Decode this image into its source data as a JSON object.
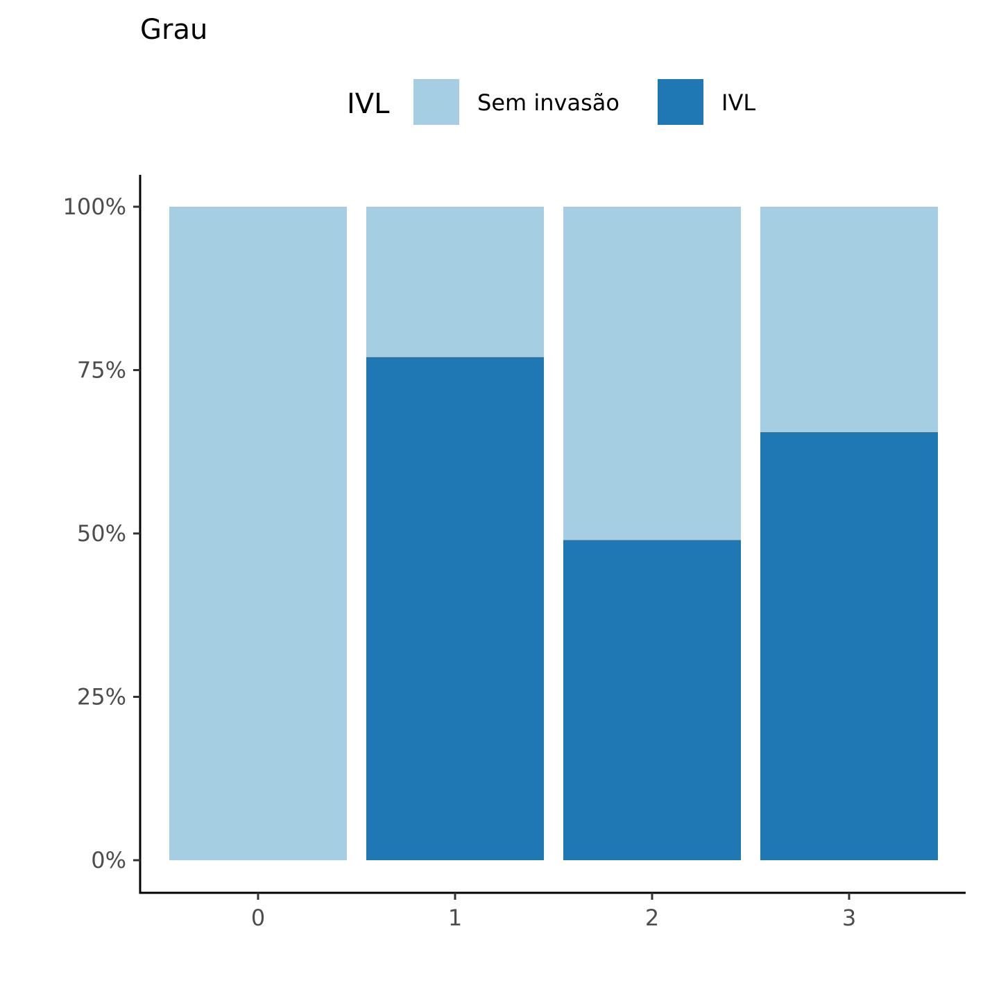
{
  "chart_data": {
    "type": "bar",
    "stacked": true,
    "normalized": true,
    "title": "Grau",
    "legend": {
      "title": "IVL",
      "position": "top",
      "entries": [
        {
          "label": "Sem invasão",
          "color": "#a6cee3"
        },
        {
          "label": "IVL",
          "color": "#1f78b4"
        }
      ]
    },
    "categories": [
      "0",
      "1",
      "2",
      "3"
    ],
    "series": [
      {
        "name": "Sem invasão",
        "color": "#a6cee3",
        "values": [
          100,
          23,
          51,
          34.5
        ]
      },
      {
        "name": "IVL",
        "color": "#1f78b4",
        "values": [
          0,
          77,
          49,
          65.5
        ]
      }
    ],
    "ylim": [
      0,
      100
    ],
    "yticks": [
      0,
      25,
      50,
      75,
      100
    ],
    "ytick_labels": [
      "0%",
      "25%",
      "50%",
      "75%",
      "100%"
    ],
    "xlabel": "",
    "ylabel": "",
    "grid": false
  }
}
